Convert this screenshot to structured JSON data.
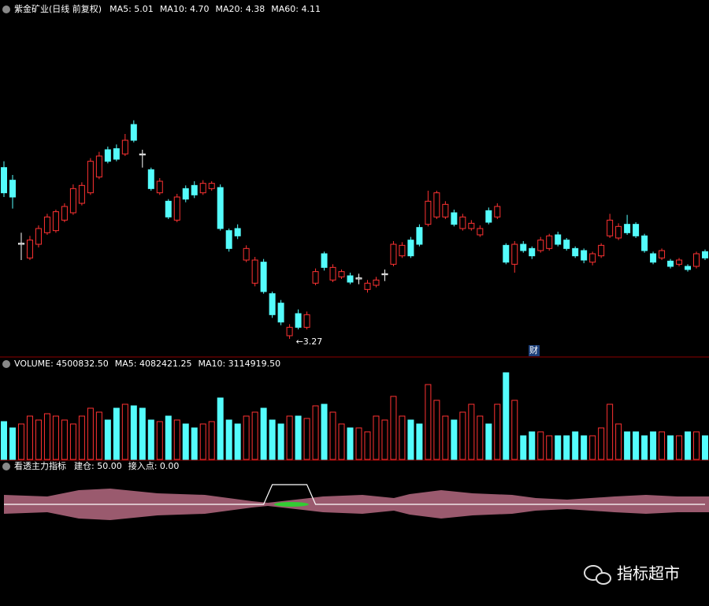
{
  "chart_data": [
    {
      "type": "candlestick",
      "title": "紫金矿业(日线 前复权)",
      "legend": [
        {
          "label": "MA5: 5.01",
          "color": "#ffffff"
        },
        {
          "label": "MA10: 4.70",
          "color": "#ffffff"
        },
        {
          "label": "MA20: 4.38",
          "color": "#ff44ff"
        },
        {
          "label": "MA60: 4.11",
          "color": "#33ee66"
        }
      ],
      "up_color": "#ff3232",
      "down_color": "#54fcfc",
      "ylim": [
        3.105,
        6.345
      ],
      "open": [
        4.9,
        4.78,
        4.17,
        4.04,
        4.17,
        4.28,
        4.3,
        4.4,
        4.47,
        4.56,
        4.66,
        4.81,
        5.07,
        5.08,
        5.03,
        5.31,
        5.03,
        4.88,
        4.66,
        4.58,
        4.4,
        4.7,
        4.73,
        4.66,
        4.7,
        4.71,
        4.3,
        4.32,
        4.02,
        3.8,
        4.0,
        3.7,
        3.61,
        3.3,
        3.51,
        3.38,
        3.8,
        4.08,
        3.83,
        3.86,
        3.87,
        3.84,
        3.74,
        3.78,
        3.88,
        3.98,
        4.06,
        4.21,
        4.33,
        4.36,
        4.43,
        4.43,
        4.47,
        4.32,
        4.32,
        4.26,
        4.49,
        4.43,
        4.16,
        3.98,
        4.17,
        4.13,
        4.11,
        4.13,
        4.26,
        4.21,
        4.13,
        4.11,
        4.0,
        4.06,
        4.25,
        4.23,
        4.36,
        4.36,
        4.25,
        4.08,
        4.04,
        4.01,
        3.98,
        3.96,
        3.96,
        4.1
      ],
      "high": [
        4.96,
        4.83,
        4.28,
        4.25,
        4.35,
        4.46,
        4.5,
        4.56,
        4.74,
        4.76,
        4.99,
        5.05,
        5.1,
        5.12,
        5.22,
        5.35,
        5.07,
        4.9,
        4.8,
        4.6,
        4.65,
        4.73,
        4.77,
        4.78,
        4.77,
        4.74,
        4.32,
        4.36,
        4.16,
        4.05,
        4.03,
        3.72,
        3.64,
        3.41,
        3.55,
        3.53,
        3.94,
        4.1,
        3.98,
        3.93,
        3.9,
        3.89,
        3.83,
        3.86,
        3.93,
        4.2,
        4.19,
        4.24,
        4.36,
        4.68,
        4.68,
        4.58,
        4.5,
        4.46,
        4.4,
        4.35,
        4.52,
        4.56,
        4.18,
        4.2,
        4.2,
        4.15,
        4.24,
        4.27,
        4.29,
        4.23,
        4.15,
        4.13,
        4.1,
        4.18,
        4.46,
        4.37,
        4.45,
        4.38,
        4.27,
        4.1,
        4.13,
        4.03,
        4.04,
        3.98,
        4.1,
        4.12
      ],
      "low": [
        4.62,
        4.51,
        4.02,
        4.02,
        4.14,
        4.26,
        4.28,
        4.38,
        4.45,
        4.54,
        4.64,
        4.79,
        4.94,
        4.96,
        5.01,
        5.14,
        4.9,
        4.68,
        4.64,
        4.41,
        4.38,
        4.57,
        4.61,
        4.64,
        4.68,
        4.3,
        4.1,
        4.22,
        4.0,
        3.77,
        3.7,
        3.47,
        3.4,
        3.27,
        3.36,
        3.36,
        3.78,
        3.92,
        3.81,
        3.84,
        3.79,
        3.79,
        3.71,
        3.76,
        3.82,
        3.96,
        4.04,
        4.04,
        4.15,
        4.34,
        4.41,
        4.41,
        4.34,
        4.3,
        4.3,
        4.24,
        4.36,
        4.41,
        3.98,
        3.9,
        4.09,
        4.03,
        4.09,
        4.11,
        4.15,
        4.11,
        4.04,
        3.99,
        3.97,
        4.04,
        4.23,
        4.21,
        4.26,
        4.23,
        4.09,
        3.98,
        4.02,
        3.94,
        3.96,
        3.91,
        3.94,
        4.02
      ],
      "close": [
        4.66,
        4.62,
        4.18,
        4.21,
        4.32,
        4.43,
        4.48,
        4.53,
        4.7,
        4.73,
        4.96,
        5.01,
        4.96,
        4.98,
        5.16,
        5.16,
        5.02,
        4.7,
        4.77,
        4.43,
        4.62,
        4.6,
        4.64,
        4.75,
        4.75,
        4.32,
        4.13,
        4.25,
        4.13,
        4.02,
        3.72,
        3.5,
        3.43,
        3.38,
        3.38,
        3.5,
        3.91,
        3.95,
        3.95,
        3.91,
        3.81,
        3.85,
        3.8,
        3.83,
        3.89,
        4.17,
        4.16,
        4.06,
        4.17,
        4.58,
        4.66,
        4.55,
        4.36,
        4.43,
        4.37,
        4.32,
        4.38,
        4.53,
        4.0,
        4.17,
        4.11,
        4.06,
        4.21,
        4.25,
        4.17,
        4.13,
        4.06,
        4.02,
        4.08,
        4.16,
        4.4,
        4.34,
        4.28,
        4.25,
        4.11,
        4.0,
        4.11,
        3.96,
        4.02,
        3.93,
        4.08,
        4.04
      ],
      "annotation": "←3.27",
      "marker": "财"
    },
    {
      "type": "bar",
      "legend": [
        {
          "label": "VOLUME: 4500832.50",
          "color": "#ffffff"
        },
        {
          "label": "MA5: 4082421.25",
          "color": "#ffffff"
        },
        {
          "label": "MA10: 3114919.50",
          "color": "#ffffff"
        }
      ],
      "ylim": [
        0,
        16950000
      ],
      "values": [
        7200000,
        6000000,
        6750000,
        8250000,
        7500000,
        8700000,
        8250000,
        7500000,
        6750000,
        8250000,
        9750000,
        9000000,
        7500000,
        9750000,
        10500000,
        10200000,
        9750000,
        7500000,
        7200000,
        8250000,
        7500000,
        6750000,
        6000000,
        6750000,
        7200000,
        11700000,
        7500000,
        6750000,
        8250000,
        9000000,
        9750000,
        7500000,
        6750000,
        8250000,
        8250000,
        7800000,
        10200000,
        10500000,
        9000000,
        6750000,
        6000000,
        6000000,
        5250000,
        8250000,
        7500000,
        12000000,
        8250000,
        7500000,
        6750000,
        14250000,
        11250000,
        8250000,
        7500000,
        9000000,
        10500000,
        8250000,
        6750000,
        10500000,
        16500000,
        11250000,
        4500000,
        5250000,
        5250000,
        4500000,
        4500000,
        4500000,
        5250000,
        4500000,
        4500000,
        6000000,
        10500000,
        6750000,
        5250000,
        5250000,
        4500000,
        5250000,
        5250000,
        4500000,
        4500000,
        5250000,
        5250000,
        4500000
      ]
    },
    {
      "type": "line",
      "title": "看透主力指标",
      "legend": [
        {
          "label": "建仓: 50.00",
          "color": "#ffffff"
        },
        {
          "label": "接入点: 0.00",
          "color": "#ff44ff"
        }
      ],
      "ylim": [
        0,
        100
      ],
      "color": "#ffffff",
      "values": [
        0,
        0,
        0,
        0,
        0,
        0,
        0,
        0,
        0,
        0,
        0,
        0,
        0,
        0,
        0,
        0,
        0,
        0,
        0,
        0,
        0,
        0,
        0,
        0,
        0,
        0,
        0,
        0,
        0,
        0,
        0,
        50,
        50,
        50,
        50,
        50,
        0,
        0,
        0,
        0,
        0,
        0,
        0,
        0,
        0,
        0,
        0,
        0,
        0,
        0,
        0,
        0,
        0,
        0,
        0,
        0,
        0,
        0,
        0,
        0,
        0,
        0,
        0,
        0,
        0,
        0,
        0,
        0,
        0,
        0,
        0,
        0,
        0,
        0,
        0,
        0,
        0,
        0,
        0,
        0,
        0,
        0
      ]
    }
  ],
  "watermark": "指标超市"
}
